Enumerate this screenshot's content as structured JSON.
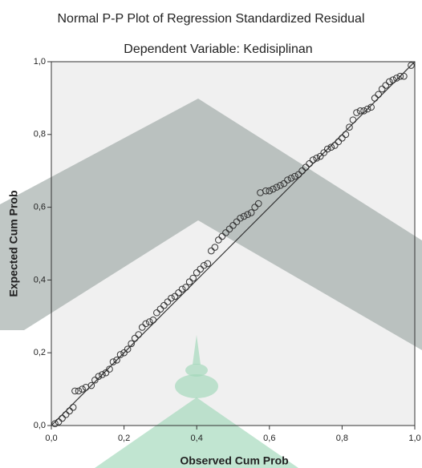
{
  "chart_data": {
    "type": "scatter",
    "title": "Normal P-P Plot of Regression Standardized Residual",
    "subtitle": "Dependent Variable: Kedisiplinan",
    "x_label": "Observed Cum Prob",
    "y_label": "Expected Cum Prob",
    "xlim": [
      0,
      1
    ],
    "ylim": [
      0,
      1
    ],
    "xticks": [
      {
        "value": 0,
        "label": "0,0"
      },
      {
        "value": 0.2,
        "label": "0,2"
      },
      {
        "value": 0.4,
        "label": "0,4"
      },
      {
        "value": 0.6,
        "label": "0,6"
      },
      {
        "value": 0.8,
        "label": "0,8"
      },
      {
        "value": 1,
        "label": "1,0"
      }
    ],
    "yticks": [
      {
        "value": 0,
        "label": "0,0"
      },
      {
        "value": 0.2,
        "label": "0,2"
      },
      {
        "value": 0.4,
        "label": "0,4"
      },
      {
        "value": 0.6,
        "label": "0,6"
      },
      {
        "value": 0.8,
        "label": "0,8"
      },
      {
        "value": 1,
        "label": "1,0"
      }
    ],
    "color": "#333333",
    "x": [
      0.01,
      0.02,
      0.03,
      0.04,
      0.05,
      0.06,
      0.065,
      0.075,
      0.085,
      0.095,
      0.11,
      0.12,
      0.13,
      0.14,
      0.15,
      0.16,
      0.17,
      0.18,
      0.19,
      0.2,
      0.21,
      0.22,
      0.23,
      0.24,
      0.25,
      0.26,
      0.27,
      0.28,
      0.29,
      0.3,
      0.31,
      0.32,
      0.33,
      0.34,
      0.35,
      0.36,
      0.37,
      0.38,
      0.39,
      0.4,
      0.41,
      0.42,
      0.43,
      0.44,
      0.45,
      0.46,
      0.47,
      0.48,
      0.49,
      0.5,
      0.51,
      0.52,
      0.53,
      0.54,
      0.55,
      0.56,
      0.57,
      0.575,
      0.59,
      0.6,
      0.61,
      0.62,
      0.63,
      0.64,
      0.65,
      0.66,
      0.67,
      0.68,
      0.69,
      0.7,
      0.71,
      0.72,
      0.73,
      0.74,
      0.75,
      0.76,
      0.77,
      0.78,
      0.79,
      0.8,
      0.81,
      0.82,
      0.83,
      0.84,
      0.85,
      0.86,
      0.87,
      0.88,
      0.89,
      0.9,
      0.91,
      0.92,
      0.93,
      0.94,
      0.95,
      0.96,
      0.97,
      0.99
    ],
    "values": [
      0.005,
      0.01,
      0.02,
      0.03,
      0.04,
      0.05,
      0.095,
      0.095,
      0.1,
      0.105,
      0.11,
      0.125,
      0.135,
      0.14,
      0.145,
      0.155,
      0.175,
      0.18,
      0.195,
      0.2,
      0.21,
      0.225,
      0.24,
      0.25,
      0.27,
      0.28,
      0.285,
      0.29,
      0.31,
      0.32,
      0.33,
      0.34,
      0.35,
      0.355,
      0.365,
      0.375,
      0.38,
      0.395,
      0.405,
      0.42,
      0.43,
      0.44,
      0.445,
      0.48,
      0.49,
      0.51,
      0.52,
      0.53,
      0.54,
      0.55,
      0.56,
      0.57,
      0.575,
      0.58,
      0.585,
      0.6,
      0.61,
      0.64,
      0.645,
      0.645,
      0.65,
      0.655,
      0.66,
      0.665,
      0.675,
      0.68,
      0.685,
      0.69,
      0.7,
      0.71,
      0.72,
      0.73,
      0.735,
      0.74,
      0.75,
      0.76,
      0.765,
      0.77,
      0.78,
      0.79,
      0.8,
      0.82,
      0.84,
      0.86,
      0.865,
      0.865,
      0.87,
      0.875,
      0.9,
      0.91,
      0.925,
      0.935,
      0.945,
      0.95,
      0.955,
      0.96,
      0.96,
      0.99
    ]
  }
}
